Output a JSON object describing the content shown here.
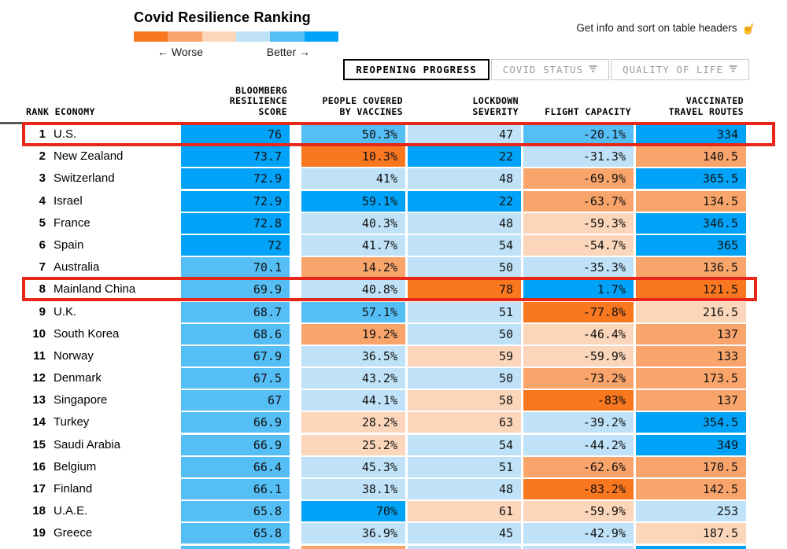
{
  "title": "Covid Resilience Ranking",
  "legend": {
    "worse_label": "← Worse",
    "better_label": "Better →",
    "colors": [
      "#f8771f",
      "#f9a46b",
      "#fbd6ba",
      "#bfe2f8",
      "#55bef5",
      "#00a3f7"
    ]
  },
  "info_note": {
    "text": "Get info and sort on table headers",
    "icon": "☝"
  },
  "tabs": [
    {
      "label": "REOPENING PROGRESS",
      "active": true
    },
    {
      "label": "COVID STATUS",
      "active": false
    },
    {
      "label": "QUALITY OF LIFE",
      "active": false
    }
  ],
  "columns": {
    "rank_economy": [
      "RANK ECONOMY"
    ],
    "score": [
      "BLOOMBERG",
      "RESILIENCE",
      "SCORE"
    ],
    "vaccines": [
      "PEOPLE COVERED",
      "BY VACCINES"
    ],
    "lockdown": [
      "LOCKDOWN",
      "SEVERITY"
    ],
    "flight": [
      "FLIGHT CAPACITY"
    ],
    "routes": [
      "VACCINATED",
      "TRAVEL ROUTES"
    ]
  },
  "color_scale": {
    "o3": "#f8771f",
    "o2": "#f9a46b",
    "o1": "#fbd6ba",
    "b1": "#bfe2f8",
    "b2": "#55bef5",
    "b3": "#00a3f7"
  },
  "annotation_red": "#e8271b",
  "accent_gray": "#58595b",
  "highlighted_rows": [
    1,
    8
  ],
  "rows": [
    {
      "rank": "1",
      "economy": "U.S.",
      "score": {
        "v": "76",
        "c": "b3"
      },
      "vaccines": {
        "v": "50.3%",
        "c": "b2"
      },
      "lockdown": {
        "v": "47",
        "c": "b1"
      },
      "flight": {
        "v": "-20.1%",
        "c": "b2"
      },
      "routes": {
        "v": "334",
        "c": "b3"
      }
    },
    {
      "rank": "2",
      "economy": "New Zealand",
      "score": {
        "v": "73.7",
        "c": "b3"
      },
      "vaccines": {
        "v": "10.3%",
        "c": "o3"
      },
      "lockdown": {
        "v": "22",
        "c": "b3"
      },
      "flight": {
        "v": "-31.3%",
        "c": "b1"
      },
      "routes": {
        "v": "140.5",
        "c": "o2"
      }
    },
    {
      "rank": "3",
      "economy": "Switzerland",
      "score": {
        "v": "72.9",
        "c": "b3"
      },
      "vaccines": {
        "v": "41%",
        "c": "b1"
      },
      "lockdown": {
        "v": "48",
        "c": "b1"
      },
      "flight": {
        "v": "-69.9%",
        "c": "o2"
      },
      "routes": {
        "v": "365.5",
        "c": "b3"
      }
    },
    {
      "rank": "4",
      "economy": "Israel",
      "score": {
        "v": "72.9",
        "c": "b3"
      },
      "vaccines": {
        "v": "59.1%",
        "c": "b3"
      },
      "lockdown": {
        "v": "22",
        "c": "b3"
      },
      "flight": {
        "v": "-63.7%",
        "c": "o2"
      },
      "routes": {
        "v": "134.5",
        "c": "o2"
      }
    },
    {
      "rank": "5",
      "economy": "France",
      "score": {
        "v": "72.8",
        "c": "b3"
      },
      "vaccines": {
        "v": "40.3%",
        "c": "b1"
      },
      "lockdown": {
        "v": "48",
        "c": "b1"
      },
      "flight": {
        "v": "-59.3%",
        "c": "o1"
      },
      "routes": {
        "v": "346.5",
        "c": "b3"
      }
    },
    {
      "rank": "6",
      "economy": "Spain",
      "score": {
        "v": "72",
        "c": "b3"
      },
      "vaccines": {
        "v": "41.7%",
        "c": "b1"
      },
      "lockdown": {
        "v": "54",
        "c": "b1"
      },
      "flight": {
        "v": "-54.7%",
        "c": "o1"
      },
      "routes": {
        "v": "365",
        "c": "b3"
      }
    },
    {
      "rank": "7",
      "economy": "Australia",
      "score": {
        "v": "70.1",
        "c": "b2"
      },
      "vaccines": {
        "v": "14.2%",
        "c": "o2"
      },
      "lockdown": {
        "v": "50",
        "c": "b1"
      },
      "flight": {
        "v": "-35.3%",
        "c": "b1"
      },
      "routes": {
        "v": "136.5",
        "c": "o2"
      }
    },
    {
      "rank": "8",
      "economy": "Mainland China",
      "score": {
        "v": "69.9",
        "c": "b2"
      },
      "vaccines": {
        "v": "40.8%",
        "c": "b1"
      },
      "lockdown": {
        "v": "78",
        "c": "o3"
      },
      "flight": {
        "v": "1.7%",
        "c": "b3"
      },
      "routes": {
        "v": "121.5",
        "c": "o3"
      }
    },
    {
      "rank": "9",
      "economy": "U.K.",
      "score": {
        "v": "68.7",
        "c": "b2"
      },
      "vaccines": {
        "v": "57.1%",
        "c": "b2"
      },
      "lockdown": {
        "v": "51",
        "c": "b1"
      },
      "flight": {
        "v": "-77.8%",
        "c": "o3"
      },
      "routes": {
        "v": "216.5",
        "c": "o1"
      }
    },
    {
      "rank": "10",
      "economy": "South Korea",
      "score": {
        "v": "68.6",
        "c": "b2"
      },
      "vaccines": {
        "v": "19.2%",
        "c": "o2"
      },
      "lockdown": {
        "v": "50",
        "c": "b1"
      },
      "flight": {
        "v": "-46.4%",
        "c": "o1"
      },
      "routes": {
        "v": "137",
        "c": "o2"
      }
    },
    {
      "rank": "11",
      "economy": "Norway",
      "score": {
        "v": "67.9",
        "c": "b2"
      },
      "vaccines": {
        "v": "36.5%",
        "c": "b1"
      },
      "lockdown": {
        "v": "59",
        "c": "o1"
      },
      "flight": {
        "v": "-59.9%",
        "c": "o1"
      },
      "routes": {
        "v": "133",
        "c": "o2"
      }
    },
    {
      "rank": "12",
      "economy": "Denmark",
      "score": {
        "v": "67.5",
        "c": "b2"
      },
      "vaccines": {
        "v": "43.2%",
        "c": "b1"
      },
      "lockdown": {
        "v": "50",
        "c": "b1"
      },
      "flight": {
        "v": "-73.2%",
        "c": "o2"
      },
      "routes": {
        "v": "173.5",
        "c": "o2"
      }
    },
    {
      "rank": "13",
      "economy": "Singapore",
      "score": {
        "v": "67",
        "c": "b2"
      },
      "vaccines": {
        "v": "44.1%",
        "c": "b1"
      },
      "lockdown": {
        "v": "58",
        "c": "o1"
      },
      "flight": {
        "v": "-83%",
        "c": "o3"
      },
      "routes": {
        "v": "137",
        "c": "o2"
      }
    },
    {
      "rank": "14",
      "economy": "Turkey",
      "score": {
        "v": "66.9",
        "c": "b2"
      },
      "vaccines": {
        "v": "28.2%",
        "c": "o1"
      },
      "lockdown": {
        "v": "63",
        "c": "o1"
      },
      "flight": {
        "v": "-39.2%",
        "c": "b1"
      },
      "routes": {
        "v": "354.5",
        "c": "b3"
      }
    },
    {
      "rank": "15",
      "economy": "Saudi Arabia",
      "score": {
        "v": "66.9",
        "c": "b2"
      },
      "vaccines": {
        "v": "25.2%",
        "c": "o1"
      },
      "lockdown": {
        "v": "54",
        "c": "b1"
      },
      "flight": {
        "v": "-44.2%",
        "c": "b1"
      },
      "routes": {
        "v": "349",
        "c": "b3"
      }
    },
    {
      "rank": "16",
      "economy": "Belgium",
      "score": {
        "v": "66.4",
        "c": "b2"
      },
      "vaccines": {
        "v": "45.3%",
        "c": "b1"
      },
      "lockdown": {
        "v": "51",
        "c": "b1"
      },
      "flight": {
        "v": "-62.6%",
        "c": "o2"
      },
      "routes": {
        "v": "170.5",
        "c": "o2"
      }
    },
    {
      "rank": "17",
      "economy": "Finland",
      "score": {
        "v": "66.1",
        "c": "b2"
      },
      "vaccines": {
        "v": "38.1%",
        "c": "b1"
      },
      "lockdown": {
        "v": "48",
        "c": "b1"
      },
      "flight": {
        "v": "-83.2%",
        "c": "o3"
      },
      "routes": {
        "v": "142.5",
        "c": "o2"
      }
    },
    {
      "rank": "18",
      "economy": "U.A.E.",
      "score": {
        "v": "65.8",
        "c": "b2"
      },
      "vaccines": {
        "v": "70%",
        "c": "b3"
      },
      "lockdown": {
        "v": "61",
        "c": "o1"
      },
      "flight": {
        "v": "-59.9%",
        "c": "o1"
      },
      "routes": {
        "v": "253",
        "c": "b1"
      }
    },
    {
      "rank": "19",
      "economy": "Greece",
      "score": {
        "v": "65.8",
        "c": "b2"
      },
      "vaccines": {
        "v": "36.9%",
        "c": "b1"
      },
      "lockdown": {
        "v": "45",
        "c": "b1"
      },
      "flight": {
        "v": "-42.9%",
        "c": "b1"
      },
      "routes": {
        "v": "187.5",
        "c": "o1"
      }
    }
  ],
  "partial_row": {
    "score": "b2",
    "vaccines": "o2",
    "lockdown": "b1",
    "flight": "b1",
    "routes": "b3"
  }
}
